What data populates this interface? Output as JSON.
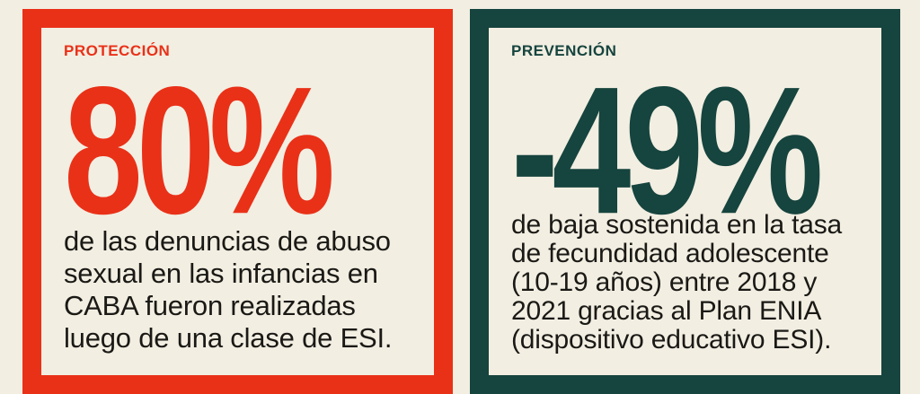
{
  "canvas": {
    "background": "#F2EEE2",
    "text_color": "#1A1915"
  },
  "cards": [
    {
      "id": "proteccion",
      "label": "PROTECCIÓN",
      "value": "80%",
      "description": "de las denuncias de abuso\nsexual en las infancias en\nCABA fueron realizadas\nluego de una clase de ESI.",
      "accent_color": "#E93118"
    },
    {
      "id": "prevencion",
      "label": "PREVENCIÓN",
      "value": "-49%",
      "description": "de baja sostenida en la tasa\nde fecundidad adolescente\n(10-19 años) entre 2018 y\n2021 gracias al Plan ENIA\n(dispositivo educativo ESI).",
      "accent_color": "#16443E"
    }
  ]
}
